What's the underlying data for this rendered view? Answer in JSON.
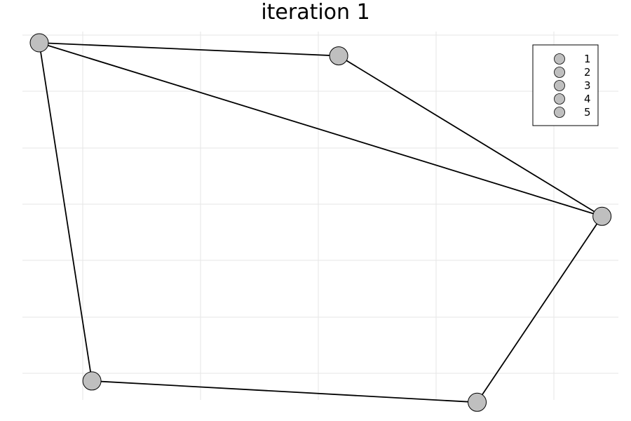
{
  "title": "iteration 1",
  "colors": {
    "node_fill": "#bfbfbf",
    "edge": "#000000",
    "grid": "#e6e6e6"
  },
  "legend": {
    "placement": "top-right",
    "entries": [
      "1",
      "2",
      "3",
      "4",
      "5"
    ]
  },
  "graph": {
    "nodes": [
      {
        "id": "A",
        "x": 0.0,
        "y": 0.0
      },
      {
        "id": "B",
        "x": 5.06,
        "y": 0.22
      },
      {
        "id": "C",
        "x": 9.51,
        "y": 2.93
      },
      {
        "id": "D",
        "x": 7.4,
        "y": 6.07
      },
      {
        "id": "E",
        "x": 0.89,
        "y": 5.71
      }
    ],
    "edges": [
      [
        "A",
        "B"
      ],
      [
        "A",
        "C"
      ],
      [
        "B",
        "C"
      ],
      [
        "C",
        "D"
      ],
      [
        "D",
        "E"
      ],
      [
        "E",
        "A"
      ]
    ]
  }
}
